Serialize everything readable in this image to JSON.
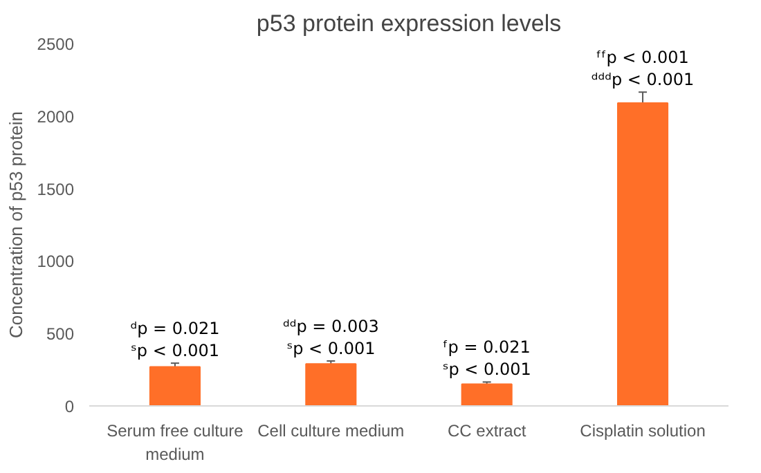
{
  "chart_data": {
    "type": "bar",
    "title": "p53 protein expression levels",
    "ylabel": "Concentration of p53 protein",
    "categories": [
      "Serum free culture medium",
      "Cell culture medium",
      "CC extract",
      "Cisplatin solution"
    ],
    "values": [
      270,
      290,
      150,
      2090
    ],
    "errors": [
      25,
      20,
      15,
      75
    ],
    "color": "#ff6f28",
    "ylim": [
      0,
      2500
    ],
    "yticks": [
      0,
      500,
      1000,
      1500,
      2000,
      2500
    ],
    "grid": false,
    "annotations": [
      "ᵈp = 0.021",
      "ˢp < 0.001",
      "ᵈᵈp = 0.003",
      "ˢp < 0.001",
      "ᶠp = 0.021",
      "ˢp < 0.001",
      "ᶠᶠp < 0.001",
      "ᵈᵈᵈp < 0.001"
    ]
  }
}
